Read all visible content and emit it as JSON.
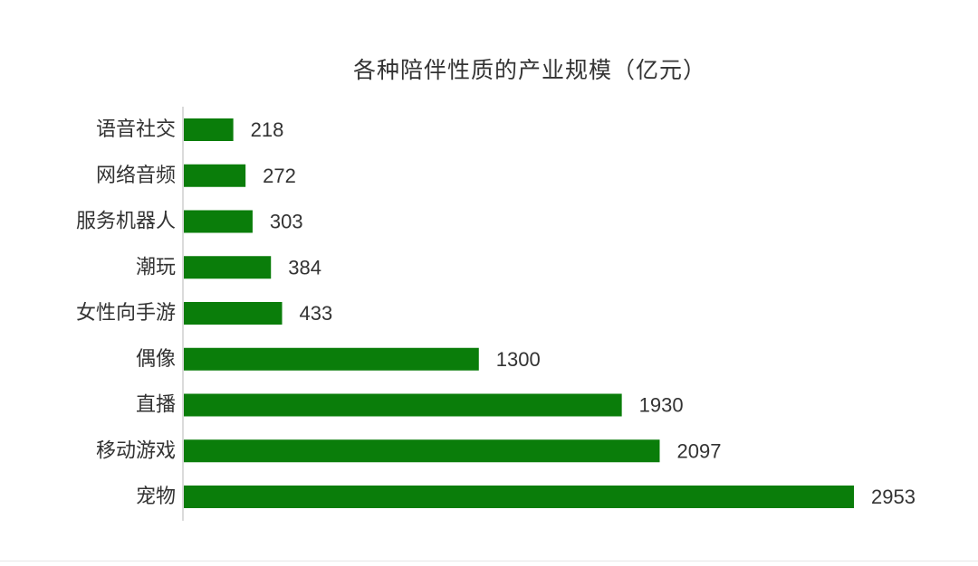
{
  "chart_data": {
    "type": "bar",
    "orientation": "horizontal",
    "title": "各种陪伴性质的产业规模（亿元）",
    "categories": [
      "语音社交",
      "网络音频",
      "服务机器人",
      "潮玩",
      "女性向手游",
      "偶像",
      "直播",
      "移动游戏",
      "宠物"
    ],
    "values": [
      218,
      272,
      303,
      384,
      433,
      1300,
      1930,
      2097,
      2953
    ],
    "xlim": [
      0,
      2953
    ],
    "grid": false,
    "bar_color": "#0a7d0a",
    "text_color": "#333333",
    "axis_color": "#cfcfcf"
  }
}
